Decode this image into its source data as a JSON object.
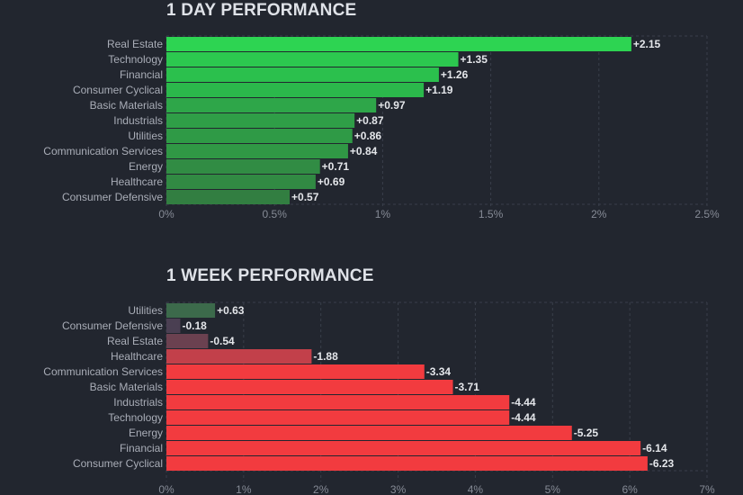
{
  "chart_data": [
    {
      "type": "bar",
      "orientation": "horizontal",
      "title": "1 DAY PERFORMANCE",
      "categories": [
        "Real Estate",
        "Technology",
        "Financial",
        "Consumer Cyclical",
        "Basic Materials",
        "Industrials",
        "Utilities",
        "Communication Services",
        "Energy",
        "Healthcare",
        "Consumer Defensive"
      ],
      "values": [
        2.15,
        1.35,
        1.26,
        1.19,
        0.97,
        0.87,
        0.86,
        0.84,
        0.71,
        0.69,
        0.57
      ],
      "value_labels": [
        "+2.15",
        "+1.35",
        "+1.26",
        "+1.19",
        "+0.97",
        "+0.87",
        "+0.86",
        "+0.84",
        "+0.71",
        "+0.69",
        "+0.57"
      ],
      "xlim": [
        0,
        2.5
      ],
      "ticks": [
        0,
        0.5,
        1,
        1.5,
        2,
        2.5
      ],
      "tick_labels": [
        "0%",
        "0.5%",
        "1%",
        "1.5%",
        "2%",
        "2.5%"
      ],
      "colors": [
        "#2dd452",
        "#2cc84f",
        "#2bc04d",
        "#2bb84b",
        "#2ea649",
        "#2f9e47",
        "#2f9a46",
        "#309845",
        "#318c44",
        "#318a43",
        "#327e41"
      ],
      "grid": true
    },
    {
      "type": "bar",
      "orientation": "horizontal",
      "title": "1 WEEK PERFORMANCE",
      "categories": [
        "Utilities",
        "Consumer Defensive",
        "Real Estate",
        "Healthcare",
        "Communication Services",
        "Basic Materials",
        "Industrials",
        "Technology",
        "Energy",
        "Financial",
        "Consumer Cyclical"
      ],
      "values": [
        0.63,
        -0.18,
        -0.54,
        -1.88,
        -3.34,
        -3.71,
        -4.44,
        -4.44,
        -5.25,
        -6.14,
        -6.23
      ],
      "value_labels": [
        "+0.63",
        "-0.18",
        "-0.54",
        "-1.88",
        "-3.34",
        "-3.71",
        "-4.44",
        "-4.44",
        "-5.25",
        "-6.14",
        "-6.23"
      ],
      "xlim": [
        0,
        7
      ],
      "bar_length": "absolute value",
      "ticks": [
        0,
        1,
        2,
        3,
        4,
        5,
        6,
        7
      ],
      "tick_labels": [
        "0%",
        "1%",
        "2%",
        "3%",
        "4%",
        "5%",
        "6%",
        "7%"
      ],
      "colors": [
        "#3c6a4b",
        "#4a3f52",
        "#6b4150",
        "#c2404a",
        "#f23b3f",
        "#f23b3f",
        "#f23b3f",
        "#f23b3f",
        "#f23b3f",
        "#f23b3f",
        "#f23b3f"
      ],
      "grid": true
    }
  ]
}
